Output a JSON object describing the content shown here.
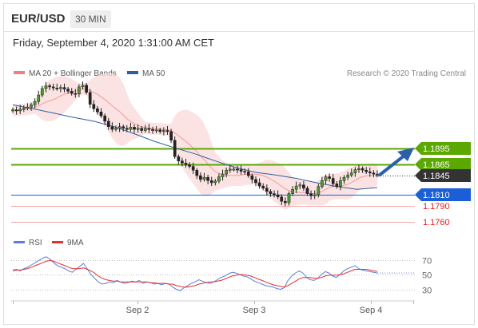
{
  "header": {
    "symbol": "EUR/USD",
    "timeframe": "30 MIN"
  },
  "datetime": "Friday, September 4, 2020 1:31:00 AM CET",
  "chart_data": [
    {
      "type": "candlestick",
      "legend": [
        {
          "label": "MA 20 + Bollinger Bands",
          "color": "#f08080"
        },
        {
          "label": "MA 50",
          "color": "#2f5f9e"
        }
      ],
      "credit": "Research © 2020 Trading Central",
      "levels": [
        {
          "label": "1.1895",
          "value": 1.1895,
          "color": "#5aa800",
          "style": "solid"
        },
        {
          "label": "1.1865",
          "value": 1.1865,
          "color": "#5aa800",
          "style": "solid"
        },
        {
          "label": "1.1845",
          "value": 1.1845,
          "color": "#333333",
          "style": "dotted"
        },
        {
          "label": "1.1810",
          "value": 1.181,
          "color": "#1a5fd6",
          "style": "solid"
        },
        {
          "label": "1.1790",
          "value": 1.179,
          "color": "#f0a8a8",
          "style": "plain"
        },
        {
          "label": "1.1760",
          "value": 1.176,
          "color": "#f0a8a8",
          "style": "plain"
        }
      ],
      "x_ticks": [
        "Sep 2",
        "Sep 3",
        "Sep 4"
      ],
      "price_range": [
        1.1742,
        1.2008
      ],
      "close_series": [
        1.1966,
        1.1964,
        1.1967,
        1.1969,
        1.1971,
        1.1975,
        1.1981,
        1.1993,
        1.2005,
        1.201,
        1.2008,
        1.2006,
        1.2005,
        1.2007,
        1.2004,
        1.2,
        1.1996,
        1.1995,
        1.2008,
        1.2011,
        1.1998,
        1.1976,
        1.1968,
        1.1962,
        1.1955,
        1.1945,
        1.1935,
        1.193,
        1.1932,
        1.1935,
        1.1932,
        1.193,
        1.1934,
        1.193,
        1.1932,
        1.1928,
        1.1932,
        1.193,
        1.1928,
        1.1929,
        1.1926,
        1.1928,
        1.1926,
        1.191,
        1.188,
        1.1872,
        1.1868,
        1.1865,
        1.1862,
        1.1855,
        1.1845,
        1.1838,
        1.1842,
        1.1836,
        1.1832,
        1.1835,
        1.1843,
        1.1848,
        1.1855,
        1.1857,
        1.1857,
        1.1856,
        1.1853,
        1.1852,
        1.1845,
        1.1838,
        1.1832,
        1.1826,
        1.1822,
        1.1816,
        1.1812,
        1.181,
        1.1806,
        1.1798,
        1.1795,
        1.1812,
        1.182,
        1.1826,
        1.1828,
        1.1822,
        1.1812,
        1.1808,
        1.181,
        1.1825,
        1.1836,
        1.1843,
        1.184,
        1.183,
        1.1825,
        1.1836,
        1.1842,
        1.1846,
        1.185,
        1.1856,
        1.1858,
        1.1855,
        1.1852,
        1.185,
        1.1848,
        1.1847
      ],
      "ma50_series": [
        1.1975,
        1.1968,
        1.196,
        1.1952,
        1.1945,
        1.1935,
        1.1922,
        1.1908,
        1.1896,
        1.1885,
        1.1872,
        1.186,
        1.1851,
        1.1846,
        1.184,
        1.1832,
        1.1825,
        1.182,
        1.1823
      ],
      "rsi_panel": {
        "legend": [
          {
            "label": "RSI",
            "color": "#5b7fd6"
          },
          {
            "label": "9MA",
            "color": "#e53030"
          }
        ],
        "levels": [
          "70",
          "50",
          "30"
        ],
        "rsi_series": [
          56,
          57,
          55,
          58,
          60,
          63,
          66,
          69,
          72,
          74,
          71,
          66,
          62,
          60,
          58,
          55,
          53,
          57,
          61,
          65,
          58,
          50,
          45,
          40,
          37,
          38,
          40,
          39,
          42,
          40,
          38,
          39,
          41,
          40,
          42,
          38,
          40,
          39,
          37,
          38,
          36,
          38,
          37,
          33,
          30,
          28,
          32,
          35,
          38,
          40,
          43,
          41,
          39,
          38,
          40,
          43,
          46,
          48,
          51,
          53,
          52,
          50,
          48,
          47,
          44,
          41,
          39,
          37,
          35,
          34,
          33,
          31,
          30,
          32,
          42,
          48,
          52,
          55,
          52,
          46,
          43,
          42,
          45,
          50,
          54,
          52,
          48,
          46,
          50,
          55,
          58,
          60,
          62,
          58,
          56,
          55,
          54,
          53,
          52
        ],
        "ma_series": [
          55,
          56,
          56,
          57,
          58,
          60,
          62,
          64,
          66,
          68,
          69,
          68,
          66,
          64,
          62,
          60,
          58,
          58,
          58,
          59,
          57,
          55,
          52,
          48,
          45,
          43,
          42,
          41,
          41,
          40,
          40,
          40,
          40,
          40,
          40,
          40,
          40,
          39,
          39,
          38,
          38,
          38,
          37,
          37,
          35,
          34,
          33,
          33,
          34,
          35,
          37,
          38,
          39,
          40,
          40,
          41,
          42,
          44,
          46,
          48,
          49,
          50,
          50,
          49,
          48,
          46,
          44,
          42,
          40,
          38,
          36,
          35,
          34,
          33,
          35,
          38,
          41,
          44,
          46,
          46,
          46,
          45,
          45,
          46,
          48,
          49,
          49,
          49,
          50,
          51,
          53,
          55,
          57,
          57,
          57,
          57,
          56,
          55,
          54
        ]
      }
    }
  ]
}
